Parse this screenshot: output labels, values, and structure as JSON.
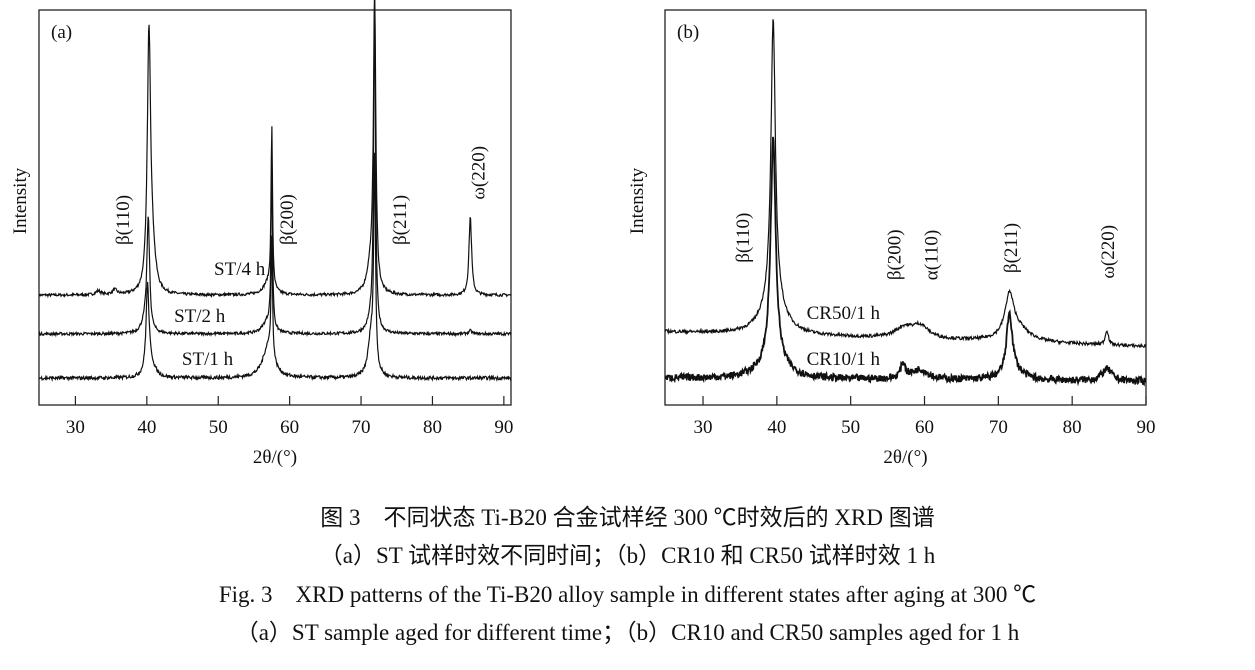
{
  "chart_data": [
    {
      "type": "line",
      "panel_label": "(a)",
      "xlabel": "2θ/(°)",
      "ylabel": "Intensity",
      "xlim": [
        24.9,
        91.0
      ],
      "ylim": [
        0,
        100
      ],
      "y_units": "arbitrary (stacked, offset)",
      "xticks": [
        30,
        40,
        50,
        60,
        70,
        80,
        90
      ],
      "grid": false,
      "series": [
        {
          "name": "ST/4 h",
          "label_pos": [
            53,
            34.7
          ],
          "baseline": 27.8,
          "noise": 0.35,
          "peaks": [
            [
              40.3,
              65,
              0.28
            ],
            [
              40.8,
              8,
              0.5
            ],
            [
              33.2,
              1,
              0.4
            ],
            [
              35.5,
              1.2,
              0.4
            ],
            [
              57.0,
              3,
              0.8
            ],
            [
              57.5,
              41,
              0.12
            ],
            [
              71.9,
              74,
              0.2
            ],
            [
              71.3,
              6,
              0.6
            ],
            [
              85.3,
              20,
              0.22
            ]
          ]
        },
        {
          "name": "ST/2 h",
          "label_pos": [
            47.4,
            22.8
          ],
          "baseline": 18.0,
          "noise": 0.35,
          "peaks": [
            [
              40.2,
              28,
              0.22
            ],
            [
              39.8,
              3,
              0.6
            ],
            [
              56.9,
              3,
              0.8
            ],
            [
              57.5,
              42,
              0.12
            ],
            [
              71.5,
              4,
              0.6
            ],
            [
              71.9,
              82,
              0.15
            ],
            [
              85.3,
              0.8,
              0.3
            ]
          ]
        },
        {
          "name": "ST/1 h",
          "label_pos": [
            48.5,
            11.9
          ],
          "baseline": 6.8,
          "noise": 0.45,
          "peaks": [
            [
              40.1,
              22,
              0.25
            ],
            [
              40.6,
              3,
              0.7
            ],
            [
              57.0,
              8,
              0.9
            ],
            [
              57.5,
              30,
              0.12
            ],
            [
              71.4,
              10,
              0.5
            ],
            [
              71.9,
              52,
              0.15
            ]
          ]
        }
      ],
      "annotations": [
        {
          "text": "β(110)",
          "x": 36.5,
          "y": 40.5
        },
        {
          "text": "β(200)",
          "x": 59.5,
          "y": 40.5
        },
        {
          "text": "β(211)",
          "x": 75.3,
          "y": 40.5
        },
        {
          "text": "ω(220)",
          "x": 86.3,
          "y": 52
        }
      ]
    },
    {
      "type": "line",
      "panel_label": "(b)",
      "xlabel": "2θ/(°)",
      "ylabel": "Intensity",
      "xlim": [
        24.85,
        90.0
      ],
      "ylim": [
        0,
        100
      ],
      "y_units": "arbitrary (stacked, offset)",
      "xticks": [
        30,
        40,
        50,
        60,
        70,
        80,
        90
      ],
      "grid": false,
      "series": [
        {
          "name": "CR50/1 h",
          "label_pos": [
            49,
            23.5
          ],
          "baseline": 18.5,
          "baseline_end": 14.8,
          "noise": 0.4,
          "peaks": [
            [
              39.5,
              70,
              0.35
            ],
            [
              39.5,
              10,
              1.6
            ],
            [
              57.2,
              2.5,
              1.4
            ],
            [
              59.4,
              3.2,
              1.4
            ],
            [
              71.5,
              10,
              0.7
            ],
            [
              72.5,
              3.5,
              2.0
            ],
            [
              84.7,
              3.8,
              0.25
            ]
          ]
        },
        {
          "name": "CR10/1 h",
          "label_pos": [
            49,
            11.9
          ],
          "baseline": 6.8,
          "baseline_end": 6.0,
          "noise": 0.9,
          "peaks": [
            [
              39.5,
              55,
              0.4
            ],
            [
              39.5,
              6,
              1.8
            ],
            [
              57.1,
              3.8,
              0.4
            ],
            [
              59.4,
              2.5,
              1.3
            ],
            [
              71.5,
              15,
              0.45
            ],
            [
              72.0,
              2.5,
              1.5
            ],
            [
              84.7,
              3,
              0.8
            ]
          ]
        }
      ],
      "annotations": [
        {
          "text": "β(110)",
          "x": 35.3,
          "y": 36
        },
        {
          "text": "β(200)",
          "x": 55.8,
          "y": 31.6
        },
        {
          "text": "α(110)",
          "x": 60.8,
          "y": 31.6
        },
        {
          "text": "β(211)",
          "x": 71.6,
          "y": 33.4
        },
        {
          "text": "ω(220)",
          "x": 84.7,
          "y": 32
        }
      ]
    }
  ],
  "caption": {
    "cn_title": "图 3　不同状态 Ti-B20 合金试样经 300 ℃时效后的 XRD 图谱",
    "cn_sub": "（a）ST 试样时效不同时间；（b）CR10 和 CR50 试样时效 1 h",
    "en_title": "Fig. 3　XRD patterns of the Ti-B20 alloy sample in different states after aging at 300 ℃",
    "en_sub": "（a）ST sample aged for different time；（b）CR10 and CR50 samples aged for 1 h"
  }
}
